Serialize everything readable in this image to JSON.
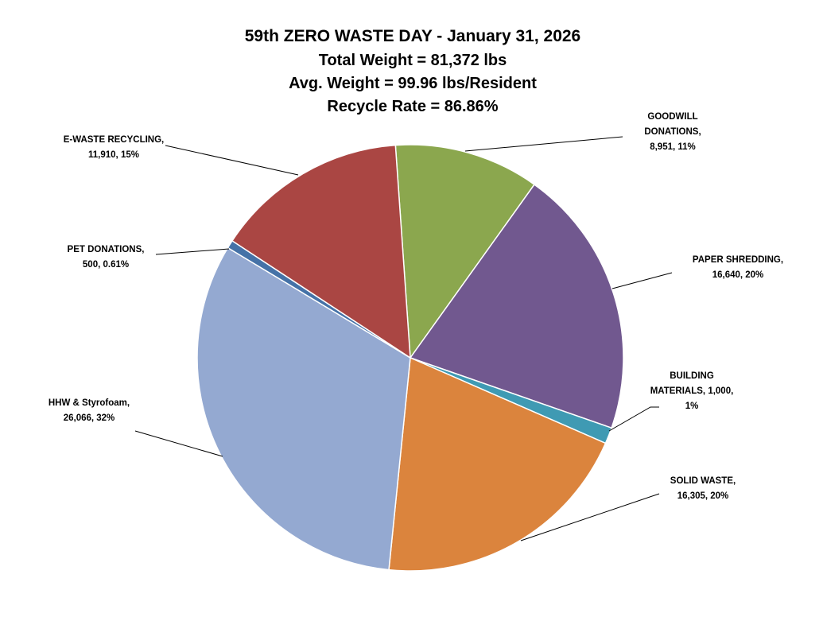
{
  "chart_data": {
    "type": "pie",
    "title": "59th ZERO WASTE DAY - January 31, 2026",
    "subtitles": [
      "Total Weight  =  81,372 lbs",
      "Avg. Weight  =  99.96 lbs/Resident",
      "Recycle Rate  =  86.86%"
    ],
    "slices": [
      {
        "name": "GOODWILL DONATIONS",
        "value": 8951,
        "percent": "11%",
        "color": "#8BA74E",
        "label_lines": [
          "GOODWILL",
          "DONATIONS,",
          "8,951, 11%"
        ]
      },
      {
        "name": "PAPER SHREDDING",
        "value": 16640,
        "percent": "20%",
        "color": "#71588F",
        "label_lines": [
          "PAPER SHREDDING,",
          "16,640, 20%"
        ]
      },
      {
        "name": "BUILDING MATERIALS",
        "value": 1000,
        "percent": "1%",
        "color": "#3F9AB3",
        "label_lines": [
          "BUILDING",
          "MATERIALS, 1,000,",
          "1%"
        ]
      },
      {
        "name": "SOLID WASTE",
        "value": 16305,
        "percent": "20%",
        "color": "#DB843D",
        "label_lines": [
          "SOLID WASTE,",
          "16,305, 20%"
        ]
      },
      {
        "name": "HHW & Styrofoam",
        "value": 26066,
        "percent": "32%",
        "color": "#94A9D1",
        "label_lines": [
          "HHW & Styrofoam,",
          "26,066, 32%"
        ]
      },
      {
        "name": "PET DONATIONS",
        "value": 500,
        "percent": "0.61%",
        "color": "#4572A7",
        "label_lines": [
          "PET DONATIONS,",
          "500, 0.61%"
        ]
      },
      {
        "name": "E-WASTE RECYCLING",
        "value": 11910,
        "percent": "15%",
        "color": "#AA4643",
        "label_lines": [
          "E-WASTE RECYCLING,",
          "11,910, 15%"
        ]
      }
    ],
    "start_angle_deg": -4,
    "direction": "clockwise",
    "legend": "none"
  }
}
